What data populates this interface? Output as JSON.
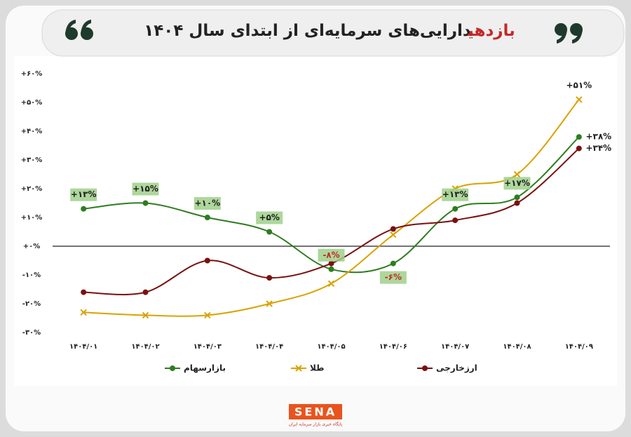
{
  "chart_data": {
    "type": "line",
    "title_highlight": "بازدهی",
    "title": "دارایی‌های سرمایه‌ای از ابتدای سال ۱۴۰۴",
    "categories": [
      "۱۴۰۴/۰۱",
      "۱۴۰۴/۰۲",
      "۱۴۰۴/۰۳",
      "۱۴۰۴/۰۴",
      "۱۴۰۴/۰۵",
      "۱۴۰۴/۰۶",
      "۱۴۰۴/۰۷",
      "۱۴۰۴/۰۸",
      "۱۴۰۴/۰۹"
    ],
    "series": [
      {
        "name": "بازارسهام",
        "color": "#2e7d1f",
        "marker": "circle",
        "values": [
          13,
          15,
          10,
          5,
          -8,
          -6,
          13,
          17,
          38
        ],
        "value_labels": [
          "+۱۳%",
          "+۱۵%",
          "+۱۰%",
          "+۵%",
          "-۸%",
          "-۶%",
          "+۱۳%",
          "+۱۷%",
          "+۳۸%"
        ]
      },
      {
        "name": "طلا",
        "color": "#d9a300",
        "marker": "x",
        "values": [
          -23,
          -24,
          -24,
          -20,
          -13,
          4,
          20,
          25,
          51
        ],
        "value_labels": [
          null,
          null,
          null,
          null,
          null,
          null,
          null,
          null,
          "+۵۱%"
        ]
      },
      {
        "name": "ارزخارجی",
        "color": "#7a1010",
        "marker": "circle",
        "values": [
          -16,
          -16,
          -5,
          -11,
          -6,
          6,
          9,
          15,
          34
        ],
        "value_labels": [
          null,
          null,
          null,
          null,
          null,
          null,
          null,
          null,
          "+۳۴%"
        ]
      }
    ],
    "ylim": [
      -30,
      60
    ],
    "yticks": [
      {
        "value": -30,
        "label": "-۳۰%"
      },
      {
        "value": -20,
        "label": "-۲۰%"
      },
      {
        "value": -10,
        "label": "-۱۰%"
      },
      {
        "value": 0,
        "label": "+۰%"
      },
      {
        "value": 10,
        "label": "+۱۰%"
      },
      {
        "value": 20,
        "label": "+۲۰%"
      },
      {
        "value": 30,
        "label": "+۳۰%"
      },
      {
        "value": 40,
        "label": "+۴۰%"
      },
      {
        "value": 50,
        "label": "+۵۰%"
      },
      {
        "value": 60,
        "label": "+۶۰%"
      }
    ],
    "zero_line": true,
    "logo": "SENA",
    "logo_tagline": "پایگاه خبری بازار سرمایه ایران"
  }
}
